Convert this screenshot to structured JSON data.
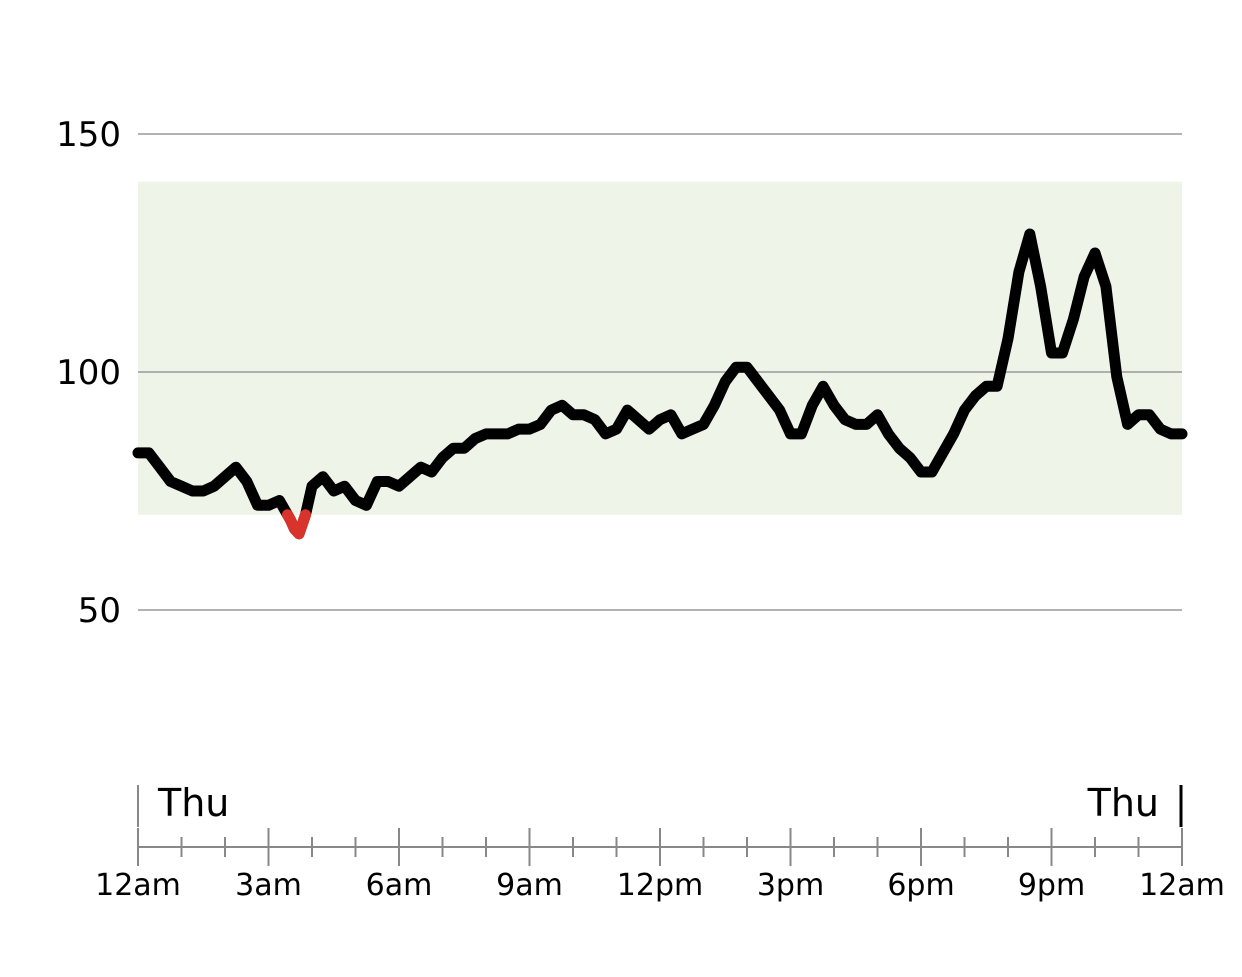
{
  "chart_data": {
    "type": "line",
    "title": "",
    "xlabel": "",
    "ylabel": "",
    "ylim": [
      10,
      170
    ],
    "y_ticks": [
      50,
      100,
      150
    ],
    "target_range": [
      70,
      140
    ],
    "low_threshold": 70,
    "colors": {
      "line": "#000000",
      "low": "#d9342b",
      "target_band": "#eef5e8",
      "gridline": "#999999",
      "axis": "#888888"
    },
    "x_range_hours": [
      0,
      24
    ],
    "x_ticks": [
      "12am",
      "3am",
      "6am",
      "9am",
      "12pm",
      "3pm",
      "6pm",
      "9pm",
      "12am"
    ],
    "day_labels": {
      "start": "Thu",
      "end": "Thu"
    },
    "series": [
      {
        "x": [
          0,
          0.25,
          0.5,
          0.75,
          1.0,
          1.25,
          1.5,
          1.75,
          2.0,
          2.25,
          2.5,
          2.75,
          3.0,
          3.25,
          3.5,
          3.6,
          3.7,
          3.85,
          4.0,
          4.25,
          4.5,
          4.75,
          5.0,
          5.25,
          5.5,
          5.75,
          6.0,
          6.25,
          6.5,
          6.75,
          7.0,
          7.25,
          7.5,
          7.75,
          8.0,
          8.25,
          8.5,
          8.75,
          9.0,
          9.25,
          9.5,
          9.75,
          10.0,
          10.25,
          10.5,
          10.75,
          11.0,
          11.25,
          11.5,
          11.75,
          12.0,
          12.25,
          12.5,
          12.75,
          13.0,
          13.25,
          13.5,
          13.75,
          14.0,
          14.25,
          14.5,
          14.75,
          15.0,
          15.25,
          15.5,
          15.75,
          16.0,
          16.25,
          16.5,
          16.75,
          17.0,
          17.25,
          17.5,
          17.75,
          18.0,
          18.25,
          18.5,
          18.75,
          19.0,
          19.25,
          19.5,
          19.75,
          20.0,
          20.25,
          20.5,
          20.75,
          21.0,
          21.25,
          21.5,
          21.75,
          22.0,
          22.25,
          22.5,
          22.75,
          23.0,
          23.25,
          23.5,
          23.75,
          24.0
        ],
        "y": [
          83,
          83,
          80,
          77,
          76,
          75,
          75,
          76,
          78,
          80,
          77,
          72,
          72,
          73,
          69,
          67,
          66,
          70,
          76,
          78,
          75,
          76,
          73,
          72,
          77,
          77,
          76,
          78,
          80,
          79,
          82,
          84,
          84,
          86,
          87,
          87,
          87,
          88,
          88,
          89,
          92,
          93,
          91,
          91,
          90,
          87,
          88,
          92,
          90,
          88,
          90,
          91,
          87,
          88,
          89,
          93,
          98,
          101,
          101,
          98,
          95,
          92,
          87,
          87,
          93,
          97,
          93,
          90,
          89,
          89,
          91,
          87,
          84,
          82,
          79,
          79,
          83,
          87,
          92,
          95,
          97,
          97,
          107,
          121,
          129,
          118,
          104,
          104,
          111,
          120,
          125,
          118,
          99,
          89,
          91,
          91,
          88,
          87,
          87
        ]
      }
    ]
  }
}
